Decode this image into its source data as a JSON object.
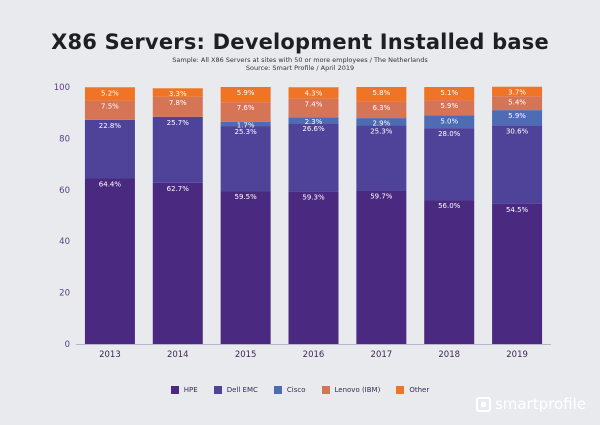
{
  "header": {
    "title": "X86 Servers: Development Installed base",
    "sample": "Sample: All X86 Servers at sites with 50 or more employees / The Netherlands",
    "source": "Source: Smart Profile / April 2019"
  },
  "logo": {
    "text": "smartprofile"
  },
  "chart_data": {
    "type": "bar",
    "stacked": true,
    "title": "X86 Servers: Development Installed base",
    "categories": [
      "2013",
      "2014",
      "2015",
      "2016",
      "2017",
      "2018",
      "2019"
    ],
    "ylim": [
      0,
      100
    ],
    "yticks": [
      0,
      20,
      40,
      60,
      80,
      100
    ],
    "legend_position": "bottom",
    "grid": false,
    "series": [
      {
        "name": "HPE",
        "color": "#4a2a80",
        "values": [
          64.4,
          62.7,
          59.5,
          59.3,
          59.7,
          56.0,
          54.5
        ],
        "labels": [
          "64.4%",
          "62.7%",
          "59.5%",
          "59.3%",
          "59.7%",
          "56.0%",
          "54.5%"
        ]
      },
      {
        "name": "Dell EMC",
        "color": "#4f4399",
        "values": [
          22.8,
          25.7,
          25.3,
          26.6,
          25.3,
          28.0,
          30.6
        ],
        "labels": [
          "22.8%",
          "25.7%",
          "25.3%",
          "26.6%",
          "25.3%",
          "28.0%",
          "30.6%"
        ]
      },
      {
        "name": "Cisco",
        "color": "#4d6cb3",
        "values": [
          0,
          0,
          1.7,
          2.3,
          2.9,
          5.0,
          5.9
        ],
        "labels": [
          "",
          "",
          "1.7%",
          "2.3%",
          "2.9%",
          "5.0%",
          "5.9%"
        ]
      },
      {
        "name": "Lenovo (IBM)",
        "color": "#d67556",
        "values": [
          7.5,
          7.8,
          7.6,
          7.4,
          6.3,
          5.9,
          5.4
        ],
        "labels": [
          "7.5%",
          "7.8%",
          "7.6%",
          "7.4%",
          "6.3%",
          "5.9%",
          "5.4%"
        ]
      },
      {
        "name": "Other",
        "color": "#ef7425",
        "values": [
          5.2,
          3.3,
          5.9,
          4.3,
          5.8,
          5.1,
          3.7
        ],
        "labels": [
          "5.2%",
          "3.3%",
          "5.9%",
          "4.3%",
          "5.8%",
          "5.1%",
          "3.7%"
        ]
      }
    ]
  }
}
